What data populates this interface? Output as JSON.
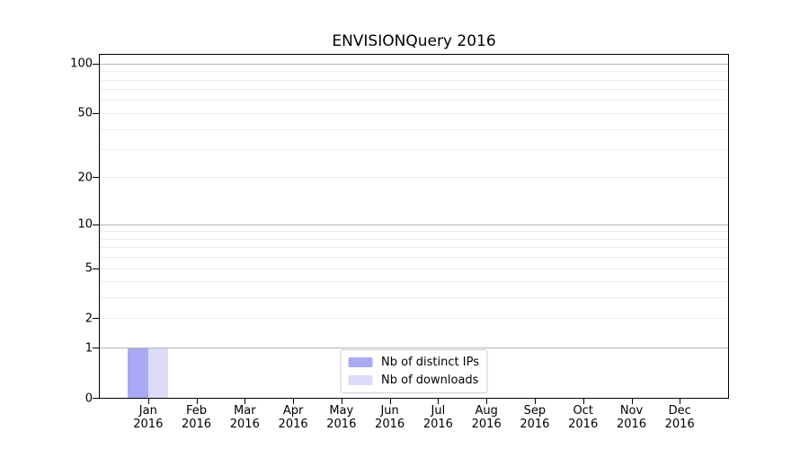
{
  "chart_data": {
    "type": "bar",
    "title": "ENVISIONQuery 2016",
    "categories": [
      [
        "Jan",
        "2016"
      ],
      [
        "Feb",
        "2016"
      ],
      [
        "Mar",
        "2016"
      ],
      [
        "Apr",
        "2016"
      ],
      [
        "May",
        "2016"
      ],
      [
        "Jun",
        "2016"
      ],
      [
        "Jul",
        "2016"
      ],
      [
        "Aug",
        "2016"
      ],
      [
        "Sep",
        "2016"
      ],
      [
        "Oct",
        "2016"
      ],
      [
        "Nov",
        "2016"
      ],
      [
        "Dec",
        "2016"
      ]
    ],
    "series": [
      {
        "name": "Nb of distinct IPs",
        "color": "#a9a9f1",
        "values": [
          1,
          0,
          0,
          0,
          0,
          0,
          0,
          0,
          0,
          0,
          0,
          0
        ]
      },
      {
        "name": "Nb of downloads",
        "color": "#dbdbf7",
        "values": [
          1,
          0,
          0,
          0,
          0,
          0,
          0,
          0,
          0,
          0,
          0,
          0
        ]
      }
    ],
    "xlabel": "",
    "ylabel": "",
    "y_axis": {
      "scale": "log1p",
      "lim": [
        0,
        113
      ],
      "tick_values": [
        0,
        1,
        2,
        5,
        10,
        20,
        50,
        100
      ],
      "tick_labels": [
        "0",
        "1",
        "2",
        "5",
        "10",
        "20",
        "50",
        "100"
      ],
      "major_gridlines": [
        1,
        10,
        100
      ],
      "minor_gridlines": [
        2,
        3,
        4,
        5,
        6,
        7,
        8,
        9,
        20,
        30,
        40,
        50,
        60,
        70,
        80,
        90
      ]
    },
    "grid": {
      "major_color": "#b4b4b4",
      "minor_color": "#ececec"
    },
    "legend_position": "lower center",
    "background": "#ffffff",
    "text_color": "#000000"
  }
}
